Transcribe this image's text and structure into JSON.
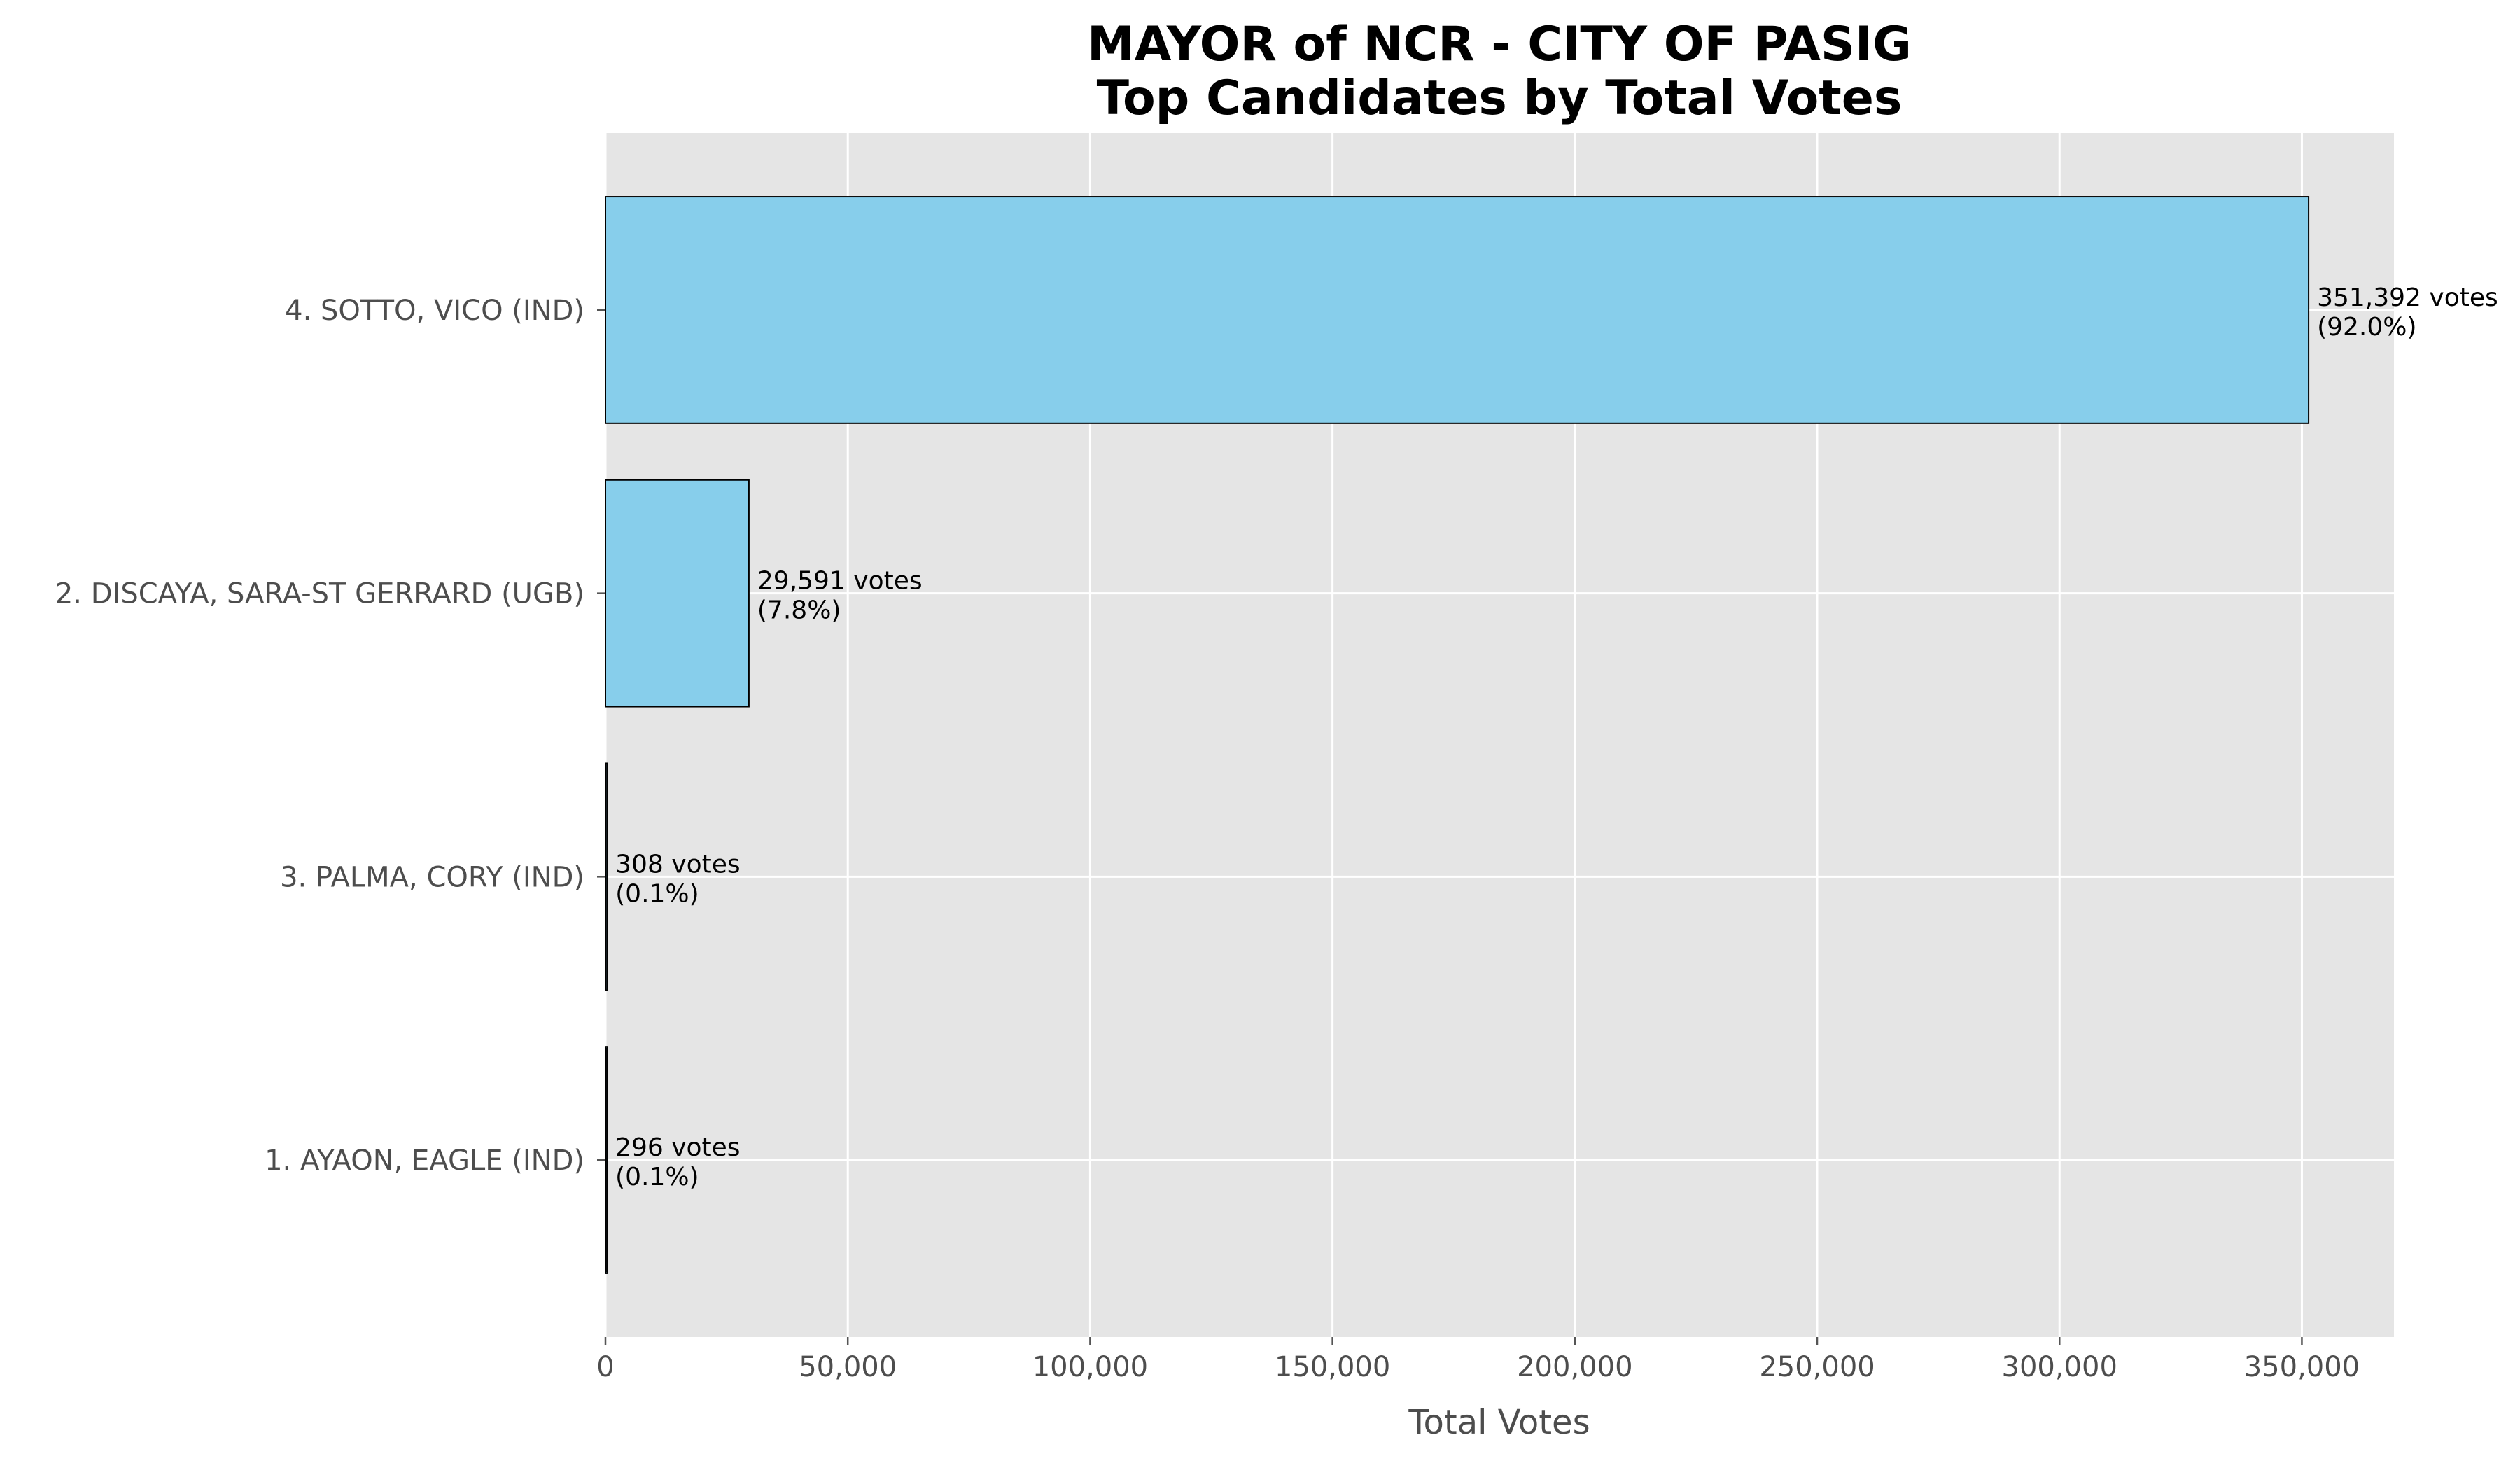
{
  "chart_data": {
    "type": "bar",
    "orientation": "horizontal",
    "title": "MAYOR of NCR - CITY OF PASIG",
    "subtitle": "Top Candidates by Total Votes",
    "xlabel": "Total Votes",
    "ylabel": "",
    "xlim": [
      0,
      369000
    ],
    "xticks": [
      0,
      50000,
      100000,
      150000,
      200000,
      250000,
      300000,
      350000
    ],
    "xtick_labels": [
      "0",
      "50,000",
      "100,000",
      "150,000",
      "200,000",
      "250,000",
      "300,000",
      "350,000"
    ],
    "grid": true,
    "categories": [
      "4. SOTTO, VICO (IND)",
      "2. DISCAYA, SARA-ST GERRARD (UGB)",
      "3. PALMA, CORY (IND)",
      "1. AYAON, EAGLE (IND)"
    ],
    "values": [
      351392,
      29591,
      308,
      296
    ],
    "value_labels": [
      "351,392 votes",
      "29,591 votes",
      "308 votes",
      "296 votes"
    ],
    "percent_labels": [
      "(92.0%)",
      "(7.8%)",
      "(0.1%)",
      "(0.1%)"
    ],
    "colors": {
      "bar": "#87ceeb",
      "bar_edge": "#000000",
      "plot_background": "#e5e5e5",
      "grid": "#ffffff"
    }
  }
}
